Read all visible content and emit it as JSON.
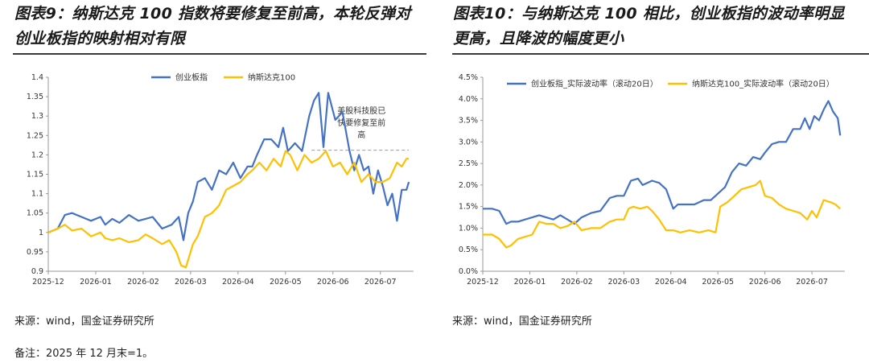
{
  "left": {
    "title_line1": "图表9：纳斯达克 100 指数将要修复至前高，本轮反弹对",
    "title_line2": "创业板指的映射相对有限",
    "source": "来源：wind，国金证券研究所",
    "note": "备注：2025 年 12 月末=1。"
  },
  "right": {
    "title_line1": "图表10：与纳斯达克 100 相比，创业板指的波动率明显",
    "title_line2": "更高，且降波的幅度更小",
    "source": "来源：wind，国金证券研究所"
  },
  "chart_data": [
    {
      "type": "line",
      "x_ticks": [
        "2025-12",
        "2026-01",
        "2026-02",
        "2026-03",
        "2026-04",
        "2026-05",
        "2026-06",
        "2026-07"
      ],
      "y_ticks": [
        "0.9",
        "0.95",
        "1",
        "1.05",
        "1.1",
        "1.15",
        "1.2",
        "1.25",
        "1.3",
        "1.35",
        "1.4"
      ],
      "ylim": [
        0.9,
        1.4
      ],
      "x_range": [
        0,
        7.7
      ],
      "legend": "top-center",
      "grid": false,
      "annotation": {
        "lines": [
          "美股科技股已",
          "快要修复至前",
          "高"
        ],
        "x": 6.5,
        "y": 1.212
      },
      "series": [
        {
          "name": "创业板指",
          "color": "#4472C4",
          "x": [
            0,
            0.2,
            0.35,
            0.5,
            0.7,
            0.9,
            1.1,
            1.2,
            1.35,
            1.5,
            1.7,
            1.9,
            2.05,
            2.2,
            2.4,
            2.6,
            2.75,
            2.85,
            2.95,
            3.05,
            3.15,
            3.3,
            3.45,
            3.6,
            3.75,
            3.9,
            4.05,
            4.2,
            4.3,
            4.4,
            4.55,
            4.7,
            4.85,
            4.95,
            5.05,
            5.2,
            5.35,
            5.5,
            5.6,
            5.7,
            5.8,
            5.9,
            6.05,
            6.2,
            6.35,
            6.45,
            6.55,
            6.65,
            6.75,
            6.85,
            6.95,
            7.05,
            7.15,
            7.25,
            7.35,
            7.45,
            7.55,
            7.6
          ],
          "values": [
            1.0,
            1.01,
            1.045,
            1.05,
            1.04,
            1.03,
            1.04,
            1.02,
            1.035,
            1.025,
            1.045,
            1.03,
            1.035,
            1.04,
            1.01,
            1.02,
            1.04,
            0.98,
            1.05,
            1.08,
            1.13,
            1.14,
            1.11,
            1.16,
            1.15,
            1.18,
            1.14,
            1.17,
            1.17,
            1.2,
            1.24,
            1.24,
            1.22,
            1.27,
            1.21,
            1.23,
            1.21,
            1.3,
            1.34,
            1.36,
            1.22,
            1.36,
            1.29,
            1.31,
            1.21,
            1.16,
            1.2,
            1.16,
            1.17,
            1.1,
            1.16,
            1.12,
            1.07,
            1.1,
            1.03,
            1.11,
            1.11,
            1.13
          ]
        },
        {
          "name": "纳斯达克100",
          "color": "#FFC000",
          "x": [
            0,
            0.2,
            0.35,
            0.5,
            0.7,
            0.9,
            1.1,
            1.2,
            1.35,
            1.5,
            1.7,
            1.9,
            2.05,
            2.2,
            2.4,
            2.55,
            2.7,
            2.8,
            2.9,
            3.05,
            3.15,
            3.3,
            3.45,
            3.6,
            3.75,
            3.9,
            4.05,
            4.2,
            4.3,
            4.45,
            4.6,
            4.75,
            4.9,
            5.0,
            5.1,
            5.25,
            5.4,
            5.55,
            5.7,
            5.85,
            6.0,
            6.15,
            6.3,
            6.45,
            6.6,
            6.75,
            6.9,
            7.05,
            7.2,
            7.35,
            7.45,
            7.55,
            7.6
          ],
          "values": [
            1.0,
            1.01,
            1.02,
            1.005,
            1.01,
            0.99,
            1.0,
            0.985,
            0.98,
            0.985,
            0.975,
            0.98,
            0.995,
            0.985,
            0.97,
            0.98,
            0.95,
            0.915,
            0.91,
            0.97,
            0.99,
            1.04,
            1.05,
            1.07,
            1.11,
            1.12,
            1.13,
            1.15,
            1.16,
            1.18,
            1.16,
            1.19,
            1.17,
            1.21,
            1.2,
            1.16,
            1.2,
            1.18,
            1.19,
            1.21,
            1.17,
            1.18,
            1.15,
            1.18,
            1.13,
            1.15,
            1.13,
            1.13,
            1.14,
            1.18,
            1.17,
            1.19,
            1.19
          ]
        }
      ]
    },
    {
      "type": "line",
      "x_ticks": [
        "2025-12",
        "2026-01",
        "2026-02",
        "2026-03",
        "2026-04",
        "2026-05",
        "2026-06",
        "2026-07"
      ],
      "y_ticks": [
        "0.0%",
        "0.5%",
        "1.0%",
        "1.5%",
        "2.0%",
        "2.5%",
        "3.0%",
        "3.5%",
        "4.0%",
        "4.5%"
      ],
      "ylim": [
        0,
        4.5
      ],
      "x_range": [
        0,
        7.7
      ],
      "legend": "top",
      "grid": false,
      "series": [
        {
          "name": "创业板指_实际波动率（滚动20日）",
          "color": "#4472C4",
          "x": [
            0,
            0.2,
            0.35,
            0.5,
            0.6,
            0.75,
            0.9,
            1.05,
            1.2,
            1.35,
            1.5,
            1.65,
            1.8,
            1.95,
            2.1,
            2.3,
            2.5,
            2.7,
            2.85,
            3.0,
            3.15,
            3.3,
            3.4,
            3.5,
            3.6,
            3.75,
            3.9,
            4.05,
            4.15,
            4.3,
            4.5,
            4.7,
            4.85,
            5.0,
            5.15,
            5.3,
            5.45,
            5.6,
            5.75,
            5.9,
            6.0,
            6.15,
            6.3,
            6.45,
            6.6,
            6.75,
            6.85,
            6.95,
            7.05,
            7.15,
            7.25,
            7.35,
            7.45,
            7.55,
            7.6
          ],
          "values": [
            1.45,
            1.45,
            1.4,
            1.1,
            1.15,
            1.15,
            1.2,
            1.25,
            1.3,
            1.25,
            1.2,
            1.3,
            1.2,
            1.1,
            1.25,
            1.35,
            1.4,
            1.7,
            1.75,
            1.75,
            2.1,
            2.15,
            2.0,
            2.05,
            2.1,
            2.05,
            1.9,
            1.45,
            1.55,
            1.55,
            1.55,
            1.65,
            1.65,
            1.8,
            1.95,
            2.3,
            2.5,
            2.45,
            2.65,
            2.6,
            2.75,
            2.95,
            3.0,
            3.0,
            3.3,
            3.3,
            3.55,
            3.3,
            3.6,
            3.5,
            3.75,
            3.95,
            3.7,
            3.55,
            3.15
          ]
        },
        {
          "name": "纳斯达克100_实际波动率（滚动20日）",
          "color": "#FFC000",
          "x": [
            0,
            0.2,
            0.35,
            0.5,
            0.6,
            0.75,
            0.9,
            1.05,
            1.2,
            1.35,
            1.5,
            1.65,
            1.8,
            1.95,
            2.1,
            2.3,
            2.5,
            2.7,
            2.85,
            3.0,
            3.1,
            3.2,
            3.35,
            3.5,
            3.6,
            3.75,
            3.9,
            4.05,
            4.2,
            4.4,
            4.6,
            4.8,
            4.95,
            5.05,
            5.2,
            5.35,
            5.5,
            5.65,
            5.8,
            5.9,
            6.0,
            6.15,
            6.3,
            6.45,
            6.6,
            6.75,
            6.9,
            7.0,
            7.1,
            7.25,
            7.4,
            7.5,
            7.6
          ],
          "values": [
            0.85,
            0.85,
            0.75,
            0.55,
            0.6,
            0.75,
            0.8,
            0.85,
            1.15,
            1.1,
            1.1,
            1.0,
            1.05,
            1.15,
            0.95,
            1.0,
            1.0,
            1.15,
            1.2,
            1.2,
            1.45,
            1.5,
            1.45,
            1.5,
            1.4,
            1.2,
            0.95,
            0.95,
            0.9,
            0.95,
            0.9,
            0.95,
            0.9,
            1.5,
            1.6,
            1.75,
            1.9,
            1.95,
            2.0,
            2.1,
            1.75,
            1.7,
            1.55,
            1.45,
            1.4,
            1.35,
            1.2,
            1.4,
            1.25,
            1.65,
            1.6,
            1.55,
            1.45
          ]
        }
      ]
    }
  ]
}
